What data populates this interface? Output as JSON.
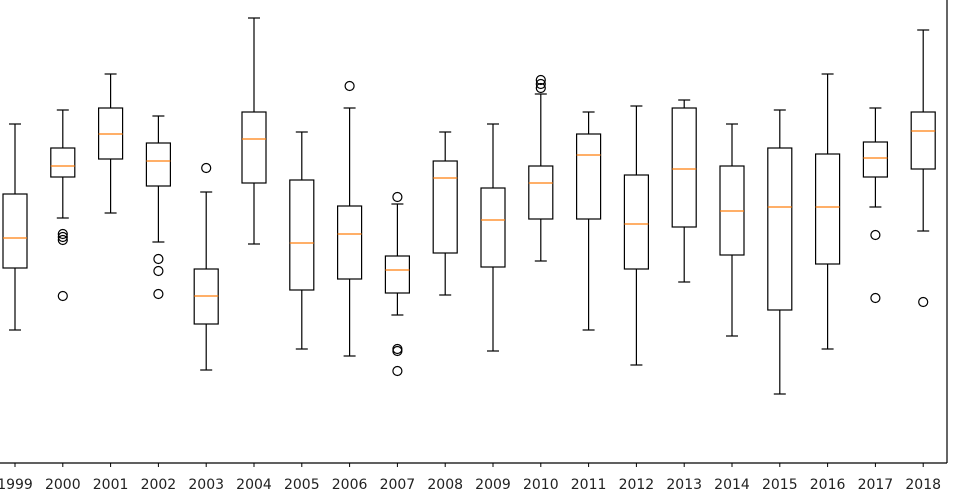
{
  "chart_data": {
    "type": "box",
    "categories": [
      "1999",
      "2000",
      "2001",
      "2002",
      "2003",
      "2004",
      "2005",
      "2006",
      "2007",
      "2008",
      "2009",
      "2010",
      "2011",
      "2012",
      "2013",
      "2014",
      "2015",
      "2016",
      "2017",
      "2018"
    ],
    "box_color": "#000000",
    "median_color": "#ff7f0e",
    "ylim": [
      0,
      463
    ],
    "boxes": [
      {
        "whislo": 133,
        "q1": 195,
        "med": 225,
        "q3": 269,
        "whishi": 339,
        "fliers": []
      },
      {
        "whislo": 245,
        "q1": 286,
        "med": 297,
        "q3": 315,
        "whishi": 353,
        "fliers": [
          229,
          226,
          223,
          167
        ]
      },
      {
        "whislo": 250,
        "q1": 304,
        "med": 329,
        "q3": 355,
        "whishi": 389,
        "fliers": []
      },
      {
        "whislo": 221,
        "q1": 277,
        "med": 302,
        "q3": 320,
        "whishi": 347,
        "fliers": [
          204,
          192,
          169
        ]
      },
      {
        "whislo": 93,
        "q1": 139,
        "med": 167,
        "q3": 194,
        "whishi": 271,
        "fliers": [
          295
        ]
      },
      {
        "whislo": 219,
        "q1": 280,
        "med": 324,
        "q3": 351,
        "whishi": 445,
        "fliers": []
      },
      {
        "whislo": 114,
        "q1": 173,
        "med": 220,
        "q3": 283,
        "whishi": 331,
        "fliers": []
      },
      {
        "whislo": 107,
        "q1": 184,
        "med": 229,
        "q3": 257,
        "whishi": 355,
        "fliers": [
          377
        ]
      },
      {
        "whislo": 148,
        "q1": 170,
        "med": 193,
        "q3": 207,
        "whishi": 259,
        "fliers": [
          266,
          114,
          112,
          92
        ]
      },
      {
        "whislo": 168,
        "q1": 210,
        "med": 285,
        "q3": 302,
        "whishi": 331,
        "fliers": []
      },
      {
        "whislo": 112,
        "q1": 196,
        "med": 243,
        "q3": 275,
        "whishi": 339,
        "fliers": []
      },
      {
        "whislo": 202,
        "q1": 244,
        "med": 280,
        "q3": 297,
        "whishi": 369,
        "fliers": [
          383,
          379,
          375
        ]
      },
      {
        "whislo": 133,
        "q1": 244,
        "med": 308,
        "q3": 329,
        "whishi": 351,
        "fliers": []
      },
      {
        "whislo": 98,
        "q1": 194,
        "med": 239,
        "q3": 288,
        "whishi": 357,
        "fliers": []
      },
      {
        "whislo": 181,
        "q1": 236,
        "med": 294,
        "q3": 355,
        "whishi": 363,
        "fliers": []
      },
      {
        "whislo": 127,
        "q1": 208,
        "med": 252,
        "q3": 297,
        "whishi": 339,
        "fliers": []
      },
      {
        "whislo": 69,
        "q1": 153,
        "med": 256,
        "q3": 315,
        "whishi": 353,
        "fliers": []
      },
      {
        "whislo": 114,
        "q1": 199,
        "med": 256,
        "q3": 309,
        "whishi": 389,
        "fliers": []
      },
      {
        "whislo": 256,
        "q1": 286,
        "med": 305,
        "q3": 321,
        "whishi": 355,
        "fliers": [
          228,
          165
        ]
      },
      {
        "whislo": 232,
        "q1": 294,
        "med": 332,
        "q3": 351,
        "whishi": 433,
        "fliers": [
          161
        ]
      }
    ]
  }
}
